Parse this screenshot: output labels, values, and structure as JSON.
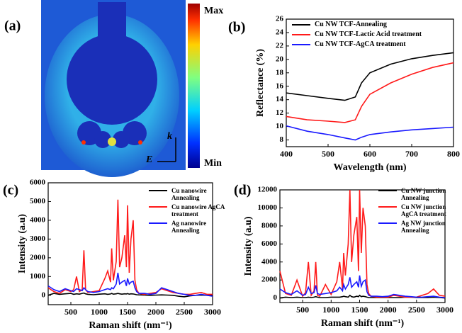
{
  "chart_data": [
    {
      "type": "field-map",
      "panel_label": "(a)",
      "max_label": "Max",
      "min_label": "Min",
      "k_label": "k",
      "e_label": "E"
    },
    {
      "type": "line",
      "panel_label": "(b)",
      "x_label": "Wavelength (nm)",
      "y_label": "Reflectance (%)",
      "x": [
        400,
        450,
        500,
        540,
        565,
        580,
        600,
        650,
        700,
        750,
        800
      ],
      "series": [
        {
          "name": "Cu NW TCF-Annealing",
          "color": "#000000",
          "values": [
            15.0,
            14.6,
            14.2,
            13.9,
            14.4,
            16.5,
            18.0,
            19.3,
            20.1,
            20.6,
            21.0
          ]
        },
        {
          "name": "Cu NW TCF-Lactic Acid treatment",
          "color": "#ff1a1a",
          "values": [
            11.5,
            11.0,
            10.8,
            10.6,
            11.0,
            13.0,
            14.8,
            16.5,
            17.8,
            18.8,
            19.5
          ]
        },
        {
          "name": "Cu NW TCF-AgCA treatment",
          "color": "#1a1aff",
          "values": [
            10.1,
            9.3,
            8.8,
            8.3,
            8.0,
            8.4,
            8.8,
            9.2,
            9.5,
            9.7,
            9.9
          ]
        }
      ],
      "xlim": [
        400,
        800
      ],
      "xticks": [
        400,
        500,
        600,
        700,
        800
      ],
      "ylim": [
        7,
        26
      ],
      "yticks": [
        8,
        10,
        12,
        14,
        16,
        18,
        20,
        22,
        24,
        26
      ]
    },
    {
      "type": "line",
      "panel_label": "(c)",
      "x_label": "Raman shift (nm⁻¹)",
      "y_label": "Intensity (a.u)",
      "x": [
        100,
        200,
        300,
        400,
        500,
        550,
        600,
        650,
        700,
        730,
        760,
        800,
        900,
        1000,
        1100,
        1150,
        1200,
        1220,
        1250,
        1300,
        1330,
        1360,
        1400,
        1450,
        1480,
        1500,
        1530,
        1560,
        1600,
        1630,
        1660,
        1700,
        1800,
        1900,
        2000,
        2100,
        2200,
        2300,
        2400,
        2500,
        2600,
        2700,
        2800,
        2900,
        3000
      ],
      "series": [
        {
          "name": "Cu nanowire Annealing",
          "color": "#000000",
          "values": [
            0,
            100,
            50,
            80,
            100,
            50,
            80,
            60,
            100,
            120,
            80,
            50,
            30,
            60,
            80,
            50,
            70,
            100,
            60,
            80,
            100,
            80,
            60,
            80,
            70,
            90,
            60,
            80,
            70,
            50,
            30,
            20,
            10,
            0,
            10,
            20,
            10,
            0,
            -50,
            -80,
            -30,
            0,
            10,
            0,
            0
          ]
        },
        {
          "name": "Cu nanowire AgCA treatment",
          "color": "#ff1a1a",
          "values": [
            400,
            200,
            100,
            300,
            200,
            300,
            1000,
            200,
            300,
            2400,
            300,
            150,
            200,
            250,
            900,
            1300,
            700,
            2500,
            800,
            1800,
            5100,
            1500,
            2000,
            3200,
            1500,
            4800,
            1200,
            3000,
            4000,
            800,
            300,
            100,
            50,
            100,
            150,
            350,
            250,
            150,
            100,
            50,
            50,
            100,
            150,
            50,
            50
          ]
        },
        {
          "name": "Ag nanowire Annealing",
          "color": "#1a1aff",
          "values": [
            500,
            300,
            200,
            350,
            250,
            200,
            350,
            300,
            250,
            400,
            300,
            200,
            150,
            200,
            300,
            350,
            300,
            400,
            350,
            600,
            1200,
            600,
            700,
            800,
            500,
            900,
            600,
            700,
            750,
            400,
            200,
            100,
            100,
            50,
            100,
            400,
            300,
            200,
            100,
            50,
            0,
            0,
            50,
            0,
            -50
          ]
        }
      ],
      "xlim": [
        100,
        3000
      ],
      "xticks": [
        500,
        1000,
        1500,
        2000,
        2500,
        3000
      ],
      "ylim": [
        -500,
        6000
      ],
      "yticks": [
        0,
        1000,
        2000,
        3000,
        4000,
        5000,
        6000
      ]
    },
    {
      "type": "line",
      "panel_label": "(d)",
      "x_label": "Raman shift (nm⁻¹)",
      "y_label": "Intensity (a.u)",
      "x": [
        100,
        200,
        300,
        400,
        500,
        550,
        600,
        650,
        700,
        730,
        760,
        800,
        900,
        1000,
        1100,
        1150,
        1200,
        1220,
        1250,
        1300,
        1330,
        1360,
        1400,
        1450,
        1480,
        1500,
        1530,
        1560,
        1600,
        1630,
        1660,
        1700,
        1800,
        1900,
        2000,
        2100,
        2200,
        2300,
        2400,
        2500,
        2600,
        2700,
        2800,
        2900,
        3000
      ],
      "series": [
        {
          "name": "Cu NW junction Annealing",
          "color": "#000000",
          "values": [
            0,
            100,
            50,
            100,
            50,
            50,
            100,
            50,
            100,
            150,
            100,
            50,
            50,
            100,
            100,
            100,
            150,
            200,
            150,
            100,
            300,
            150,
            100,
            200,
            150,
            300,
            150,
            200,
            150,
            100,
            50,
            50,
            50,
            50,
            50,
            50,
            50,
            100,
            100,
            50,
            50,
            50,
            100,
            50,
            0
          ]
        },
        {
          "name": "Cu NW junction AgCA treatment",
          "color": "#ff1a1a",
          "values": [
            3000,
            500,
            300,
            2000,
            200,
            600,
            4000,
            300,
            800,
            4000,
            300,
            200,
            1500,
            400,
            1800,
            4000,
            1000,
            5000,
            2500,
            6000,
            12000,
            4000,
            7000,
            9000,
            3000,
            12000,
            5000,
            10000,
            8000,
            1500,
            500,
            200,
            100,
            100,
            100,
            300,
            200,
            100,
            100,
            100,
            300,
            500,
            1000,
            300,
            200
          ]
        },
        {
          "name": "Ag NW junction Annealing",
          "color": "#1a1aff",
          "values": [
            1000,
            600,
            400,
            800,
            300,
            400,
            1200,
            500,
            600,
            1400,
            500,
            400,
            500,
            600,
            800,
            1200,
            800,
            1500,
            1000,
            1500,
            2300,
            1200,
            1500,
            1800,
            1200,
            2500,
            1300,
            1800,
            2000,
            700,
            300,
            200,
            200,
            150,
            200,
            400,
            300,
            200,
            150,
            100,
            100,
            150,
            200,
            100,
            50
          ]
        }
      ],
      "xlim": [
        100,
        3000
      ],
      "xticks": [
        500,
        1000,
        1500,
        2000,
        2500,
        3000
      ],
      "ylim": [
        -500,
        12000
      ],
      "yticks": [
        0,
        2000,
        4000,
        6000,
        8000,
        10000,
        12000
      ]
    }
  ]
}
